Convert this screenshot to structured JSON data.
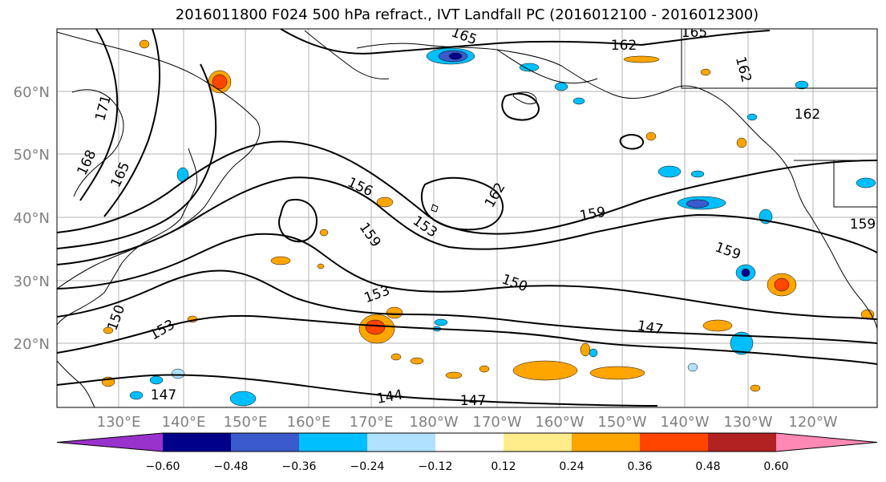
{
  "title": "2016011800 F024 500 hPa refract., IVT Landfall PC (2016012100 - 2016012300)",
  "latitude_labels": [
    "60°N",
    "50°N",
    "40°N",
    "30°N",
    "20°N"
  ],
  "longitude_labels": [
    "130°E",
    "140°E",
    "150°E",
    "160°E",
    "170°E",
    "180°W",
    "170°W",
    "160°W",
    "150°W",
    "140°W",
    "130°W",
    "120°W"
  ],
  "contour_labels": [
    "165",
    "162",
    "165",
    "162",
    "162",
    "171",
    "168",
    "165",
    "156",
    "153",
    "162",
    "159",
    "159",
    "159",
    "159",
    "150",
    "153",
    "150",
    "153",
    "147",
    "147",
    "144",
    "147"
  ],
  "colorbar": {
    "ticks": [
      "−0.60",
      "−0.48",
      "−0.36",
      "−0.24",
      "−0.12",
      "0.12",
      "0.24",
      "0.36",
      "0.48",
      "0.60"
    ],
    "colors": [
      "#9932CC",
      "#00008B",
      "#3A5ACD",
      "#00BFFF",
      "#B0E2FF",
      "#FFFFFF",
      "#FFEC8B",
      "#FFA500",
      "#FF4500",
      "#B22222",
      "#FF88B4"
    ]
  }
}
